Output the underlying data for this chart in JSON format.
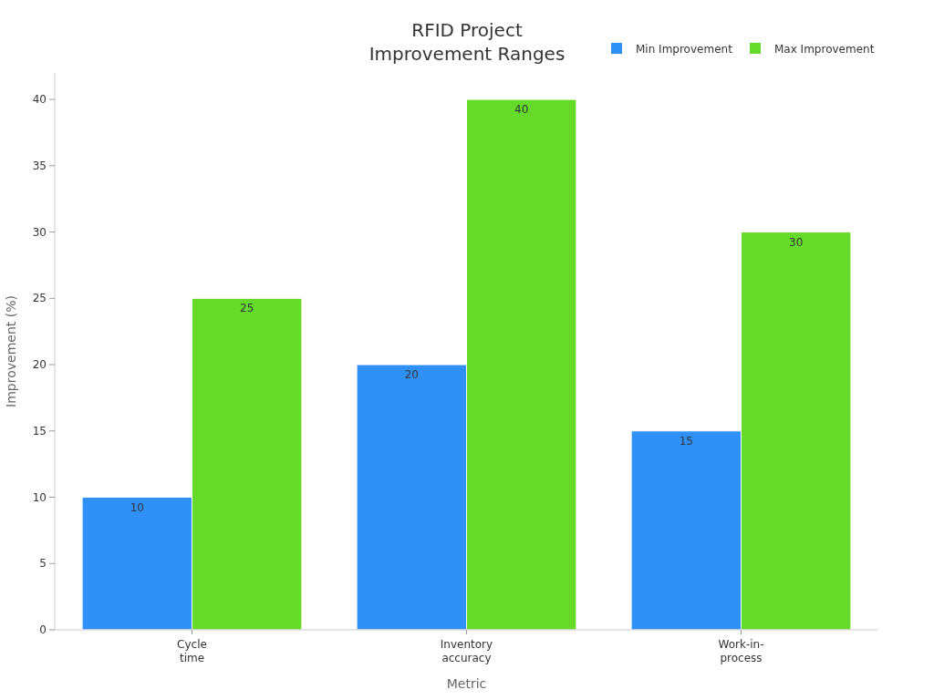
{
  "chart_data": {
    "type": "bar",
    "title": "RFID Project\nImprovement Ranges",
    "xlabel": "Metric",
    "ylabel": "Improvement (%)",
    "categories": [
      "Cycle time",
      "Inventory accuracy",
      "Work-in-process"
    ],
    "series": [
      {
        "name": "Min Improvement",
        "color": "#2f91f7",
        "values": [
          10,
          20,
          15
        ]
      },
      {
        "name": "Max Improvement",
        "color": "#66da29",
        "values": [
          25,
          40,
          30
        ]
      }
    ],
    "ylim": [
      0,
      42
    ],
    "yticks": [
      0,
      5,
      10,
      15,
      20,
      25,
      30,
      35,
      40
    ],
    "data_labels": true,
    "legend": "top right",
    "grid": false
  }
}
